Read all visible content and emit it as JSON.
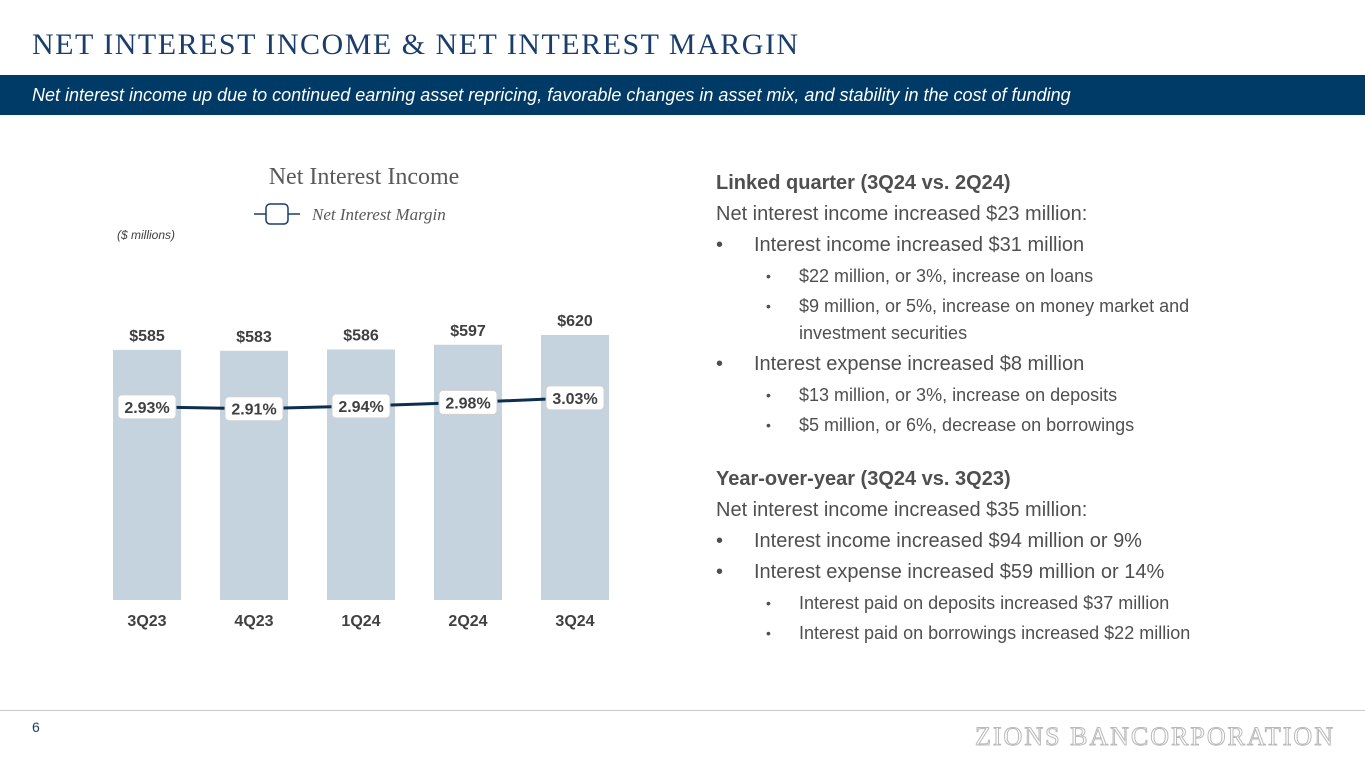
{
  "header": {
    "title": "NET INTEREST INCOME & NET INTEREST MARGIN",
    "subtitle": "Net interest income up due to continued earning asset repricing, favorable changes in asset mix, and stability in the cost of funding"
  },
  "chart_data": {
    "type": "bar",
    "title": "Net Interest Income",
    "unit_note": "($ millions)",
    "categories": [
      "3Q23",
      "4Q23",
      "1Q24",
      "2Q24",
      "3Q24"
    ],
    "series": [
      {
        "name": "Net Interest Income",
        "type": "bar",
        "values": [
          585,
          583,
          586,
          597,
          620
        ],
        "labels": [
          "$585",
          "$583",
          "$586",
          "$597",
          "$620"
        ],
        "color": "#c5d3df"
      },
      {
        "name": "Net Interest Margin",
        "type": "line",
        "values": [
          2.93,
          2.91,
          2.94,
          2.98,
          3.03
        ],
        "labels": [
          "2.93%",
          "2.91%",
          "2.94%",
          "2.98%",
          "3.03%"
        ],
        "color": "#0d2f4f"
      }
    ],
    "legend": [
      "Net Interest Income",
      "Net Interest Margin"
    ],
    "grid": false
  },
  "commentary": {
    "linked": {
      "heading": "Linked quarter (3Q24 vs. 2Q24)",
      "intro": "Net interest income increased $23 million:",
      "b1": "Interest income increased $31 million",
      "b1a": "$22 million, or 3%, increase on loans",
      "b1b_1": "$9 million, or 5%, increase on money market and",
      "b1b_2": "investment securities",
      "b2": "Interest expense increased $8 million",
      "b2a": "$13 million, or 3%, increase on deposits",
      "b2b": "$5 million, or 6%, decrease on borrowings"
    },
    "yoy": {
      "heading": "Year-over-year (3Q24 vs. 3Q23)",
      "intro": "Net interest income increased $35 million:",
      "b1": "Interest income increased $94 million or 9%",
      "b2": "Interest expense increased $59 million or 14%",
      "b2a": "Interest paid on deposits increased $37 million",
      "b2b": "Interest paid on borrowings increased $22 million"
    },
    "bullet_major": "•",
    "bullet_minor": "•"
  },
  "footer": {
    "page_number": "6",
    "logo_text": "ZIONS BANCORPORATION"
  }
}
